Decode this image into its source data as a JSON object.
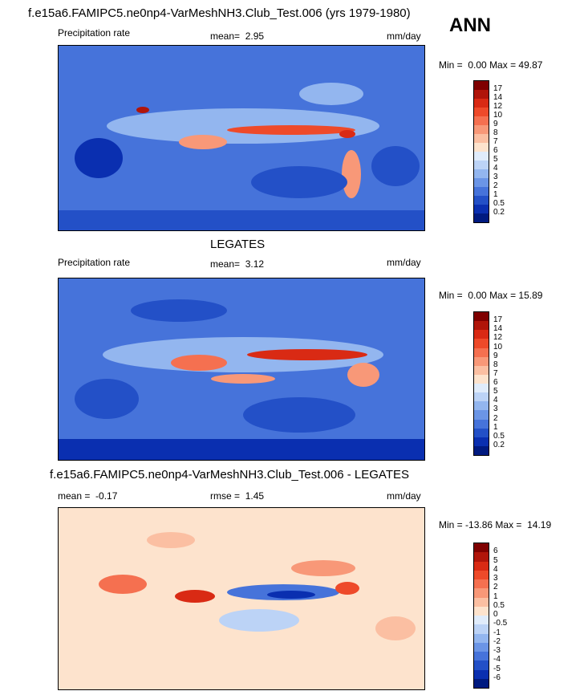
{
  "figure": {
    "season": "ANN"
  },
  "panels": [
    {
      "title": "f.e15a6.FAMIPC5.ne0np4-VarMeshNH3.Club_Test.006 (yrs 1979-1980)",
      "left_label": "Precipitation rate",
      "stat1_label": "mean=",
      "stat1_value": "2.95",
      "stat2_label": "",
      "stat2_value": "",
      "units": "mm/day",
      "min_label": "Min =",
      "min_value": "0.00",
      "max_label": "Max =",
      "max_value": "49.87",
      "colorbar_labels": [
        "17",
        "14",
        "12",
        "10",
        "9",
        "8",
        "7",
        "6",
        "5",
        "4",
        "3",
        "2",
        "1",
        "0.5",
        "0.2"
      ],
      "colors": [
        "#7f0000",
        "#b0150a",
        "#d92a14",
        "#ee4a2a",
        "#f57050",
        "#f89878",
        "#fbbfa2",
        "#fde3cd",
        "#e0ecfb",
        "#bcd3f6",
        "#93b6ef",
        "#6b95e6",
        "#4673da",
        "#2350c7",
        "#0a2fb0",
        "#001a80"
      ]
    },
    {
      "title": "LEGATES",
      "left_label": "Precipitation rate",
      "stat1_label": "mean=",
      "stat1_value": "3.12",
      "stat2_label": "",
      "stat2_value": "",
      "units": "mm/day",
      "min_label": "Min =",
      "min_value": "0.00",
      "max_label": "Max =",
      "max_value": "15.89",
      "colorbar_labels": [
        "17",
        "14",
        "12",
        "10",
        "9",
        "8",
        "7",
        "6",
        "5",
        "4",
        "3",
        "2",
        "1",
        "0.5",
        "0.2"
      ],
      "colors": [
        "#7f0000",
        "#b0150a",
        "#d92a14",
        "#ee4a2a",
        "#f57050",
        "#f89878",
        "#fbbfa2",
        "#fde3cd",
        "#e0ecfb",
        "#bcd3f6",
        "#93b6ef",
        "#6b95e6",
        "#4673da",
        "#2350c7",
        "#0a2fb0",
        "#001a80"
      ]
    },
    {
      "title": "f.e15a6.FAMIPC5.ne0np4-VarMeshNH3.Club_Test.006 - LEGATES",
      "left_label": "",
      "stat1_label": "mean =",
      "stat1_value": "-0.17",
      "stat2_label": "rmse =",
      "stat2_value": "1.45",
      "units": "mm/day",
      "min_label": "Min =",
      "min_value": "-13.86",
      "max_label": "Max =",
      "max_value": "14.19",
      "colorbar_labels": [
        "6",
        "5",
        "4",
        "3",
        "2",
        "1",
        "0.5",
        "0",
        "-0.5",
        "-1",
        "-2",
        "-3",
        "-4",
        "-5",
        "-6"
      ],
      "colors": [
        "#7f0000",
        "#b0150a",
        "#d92a14",
        "#ee4a2a",
        "#f57050",
        "#f89878",
        "#fbbfa2",
        "#fde3cd",
        "#e0ecfb",
        "#bcd3f6",
        "#93b6ef",
        "#6b95e6",
        "#4673da",
        "#2350c7",
        "#0a2fb0",
        "#001a80"
      ]
    }
  ]
}
